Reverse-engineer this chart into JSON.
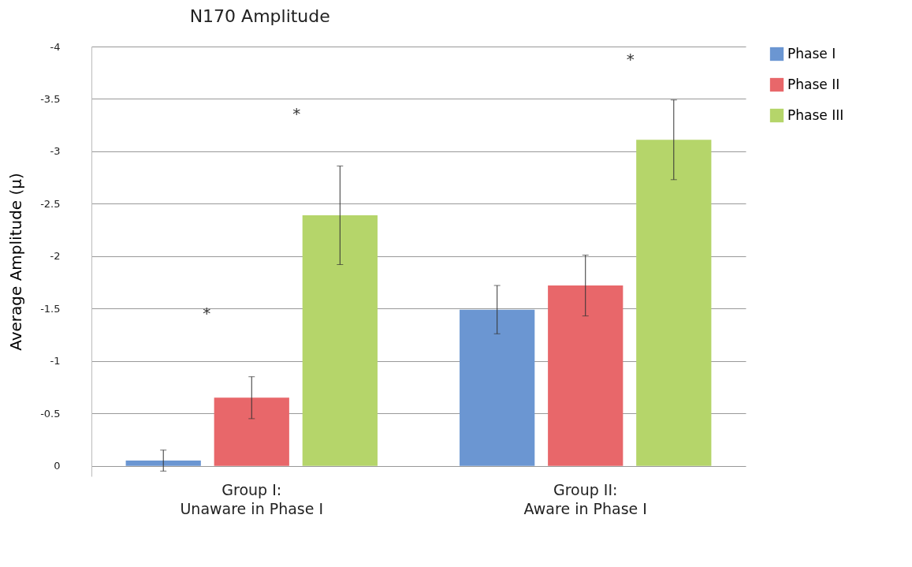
{
  "chart_data": {
    "type": "bar",
    "title": "N170 Amplitude",
    "ylabel": "Average Amplitude (μ)",
    "categories": [
      "Group I: Unaware in Phase I",
      "Group II: Aware in Phase I"
    ],
    "series": [
      {
        "name": "Phase I",
        "color": "#6b96d2",
        "values": [
          -0.05,
          -1.49
        ],
        "errors": [
          0.1,
          0.23
        ]
      },
      {
        "name": "Phase II",
        "color": "#e8676a",
        "values": [
          -0.65,
          -1.72
        ],
        "errors": [
          0.2,
          0.29
        ]
      },
      {
        "name": "Phase III",
        "color": "#b5d56a",
        "values": [
          -2.39,
          -3.11
        ],
        "errors": [
          0.47,
          0.38
        ]
      }
    ],
    "ylim": [
      0.1,
      -4
    ],
    "yticks": [
      0,
      -0.5,
      -1,
      -1.5,
      -2,
      -2.5,
      -3,
      -3.5,
      -4
    ],
    "grid": "y",
    "legend": "right",
    "annotations": [
      "*",
      "*",
      "*"
    ]
  }
}
